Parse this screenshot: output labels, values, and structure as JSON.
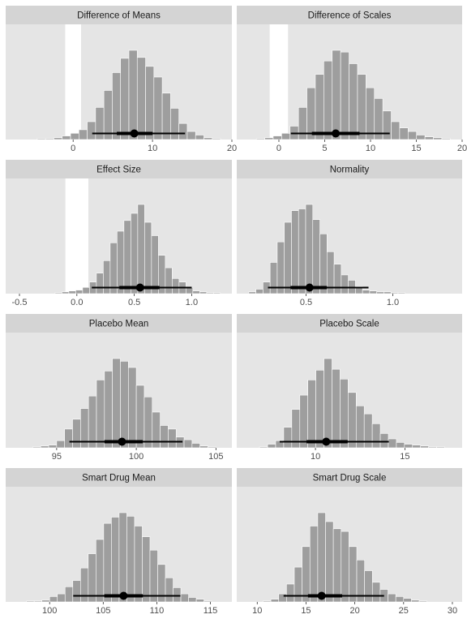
{
  "colors": {
    "panel_bg": "#e5e5e5",
    "strip_bg": "#d4d4d4",
    "bar_fill": "#9e9e9e",
    "bar_stroke": "#ffffff",
    "rope": "#ffffff",
    "interval": "#000000",
    "tick_text": "#4d4d4d",
    "strip_text": "#1a1a1a"
  },
  "chart_data": [
    {
      "type": "bar",
      "title": "Difference of Means",
      "xlim": [
        -8.5,
        20
      ],
      "ticks": [
        0,
        10,
        20
      ],
      "tick_labels": [
        "0",
        "10",
        "20"
      ],
      "rope": [
        -1,
        1
      ],
      "bin_width": 1.05,
      "bins": [
        {
          "x": -4.0,
          "count": 1
        },
        {
          "x": -2.95,
          "count": 1
        },
        {
          "x": -1.9,
          "count": 2
        },
        {
          "x": -0.85,
          "count": 4
        },
        {
          "x": 0.2,
          "count": 7
        },
        {
          "x": 1.25,
          "count": 11
        },
        {
          "x": 2.3,
          "count": 20
        },
        {
          "x": 3.35,
          "count": 36
        },
        {
          "x": 4.4,
          "count": 55
        },
        {
          "x": 5.45,
          "count": 75
        },
        {
          "x": 6.5,
          "count": 91
        },
        {
          "x": 7.55,
          "count": 100
        },
        {
          "x": 8.6,
          "count": 92
        },
        {
          "x": 9.65,
          "count": 82
        },
        {
          "x": 10.7,
          "count": 70
        },
        {
          "x": 11.75,
          "count": 52
        },
        {
          "x": 12.8,
          "count": 35
        },
        {
          "x": 13.85,
          "count": 18
        },
        {
          "x": 14.9,
          "count": 9
        },
        {
          "x": 15.95,
          "count": 5
        },
        {
          "x": 17.0,
          "count": 2
        },
        {
          "x": 18.05,
          "count": 1
        }
      ],
      "point_estimate": 7.7,
      "interval_inner": [
        5.5,
        10.0
      ],
      "interval_outer": [
        2.4,
        14.1
      ]
    },
    {
      "type": "bar",
      "title": "Difference of Scales",
      "xlim": [
        -4.6,
        20
      ],
      "ticks": [
        0,
        5,
        10,
        15,
        20
      ],
      "tick_labels": [
        "0",
        "5",
        "10",
        "15",
        "20"
      ],
      "rope": [
        -1,
        1
      ],
      "bin_width": 0.92,
      "bins": [
        {
          "x": -2.0,
          "count": 1
        },
        {
          "x": -1.08,
          "count": 2
        },
        {
          "x": -0.16,
          "count": 4
        },
        {
          "x": 0.76,
          "count": 7
        },
        {
          "x": 1.68,
          "count": 15
        },
        {
          "x": 2.6,
          "count": 36
        },
        {
          "x": 3.52,
          "count": 58
        },
        {
          "x": 4.44,
          "count": 73
        },
        {
          "x": 5.36,
          "count": 88
        },
        {
          "x": 6.28,
          "count": 100
        },
        {
          "x": 7.2,
          "count": 98
        },
        {
          "x": 8.12,
          "count": 85
        },
        {
          "x": 9.04,
          "count": 73
        },
        {
          "x": 9.96,
          "count": 58
        },
        {
          "x": 10.88,
          "count": 46
        },
        {
          "x": 11.8,
          "count": 32
        },
        {
          "x": 12.72,
          "count": 20
        },
        {
          "x": 13.64,
          "count": 13
        },
        {
          "x": 14.56,
          "count": 9
        },
        {
          "x": 15.48,
          "count": 5
        },
        {
          "x": 16.4,
          "count": 3
        },
        {
          "x": 17.32,
          "count": 2
        },
        {
          "x": 18.24,
          "count": 1
        }
      ],
      "point_estimate": 6.2,
      "interval_inner": [
        3.6,
        8.8
      ],
      "interval_outer": [
        1.3,
        12.1
      ]
    },
    {
      "type": "bar",
      "title": "Effect Size",
      "xlim": [
        -0.62,
        1.35
      ],
      "ticks": [
        -0.5,
        0,
        0.5,
        1
      ],
      "tick_labels": [
        "-0.5",
        "0.0",
        "0.5",
        "1.0"
      ],
      "rope": [
        -0.1,
        0.1
      ],
      "bin_width": 0.06,
      "bins": [
        {
          "x": -0.16,
          "count": 1
        },
        {
          "x": -0.1,
          "count": 2
        },
        {
          "x": -0.04,
          "count": 3
        },
        {
          "x": 0.02,
          "count": 4
        },
        {
          "x": 0.08,
          "count": 7
        },
        {
          "x": 0.14,
          "count": 13
        },
        {
          "x": 0.2,
          "count": 23
        },
        {
          "x": 0.26,
          "count": 37
        },
        {
          "x": 0.32,
          "count": 57
        },
        {
          "x": 0.38,
          "count": 70
        },
        {
          "x": 0.44,
          "count": 82
        },
        {
          "x": 0.5,
          "count": 90
        },
        {
          "x": 0.56,
          "count": 100
        },
        {
          "x": 0.62,
          "count": 80
        },
        {
          "x": 0.68,
          "count": 65
        },
        {
          "x": 0.74,
          "count": 43
        },
        {
          "x": 0.8,
          "count": 29
        },
        {
          "x": 0.86,
          "count": 17
        },
        {
          "x": 0.92,
          "count": 13
        },
        {
          "x": 0.98,
          "count": 7
        },
        {
          "x": 1.04,
          "count": 3
        },
        {
          "x": 1.1,
          "count": 2
        },
        {
          "x": 1.16,
          "count": 1
        },
        {
          "x": 1.22,
          "count": 1
        }
      ],
      "point_estimate": 0.55,
      "interval_inner": [
        0.37,
        0.72
      ],
      "interval_outer": [
        0.13,
        1.0
      ]
    },
    {
      "type": "bar",
      "title": "Normality",
      "xlim": [
        0.1,
        1.4
      ],
      "ticks": [
        0.5,
        1.0
      ],
      "tick_labels": [
        "0.5",
        "1.0"
      ],
      "bin_width": 0.041,
      "bins": [
        {
          "x": 0.19,
          "count": 2
        },
        {
          "x": 0.231,
          "count": 5
        },
        {
          "x": 0.272,
          "count": 13
        },
        {
          "x": 0.313,
          "count": 35
        },
        {
          "x": 0.354,
          "count": 58
        },
        {
          "x": 0.395,
          "count": 80
        },
        {
          "x": 0.436,
          "count": 93
        },
        {
          "x": 0.477,
          "count": 95
        },
        {
          "x": 0.518,
          "count": 100
        },
        {
          "x": 0.559,
          "count": 83
        },
        {
          "x": 0.6,
          "count": 67
        },
        {
          "x": 0.641,
          "count": 47
        },
        {
          "x": 0.682,
          "count": 33
        },
        {
          "x": 0.723,
          "count": 21
        },
        {
          "x": 0.764,
          "count": 15
        },
        {
          "x": 0.805,
          "count": 8
        },
        {
          "x": 0.846,
          "count": 4
        },
        {
          "x": 0.887,
          "count": 3
        },
        {
          "x": 0.928,
          "count": 2
        },
        {
          "x": 0.969,
          "count": 2
        },
        {
          "x": 1.01,
          "count": 1
        },
        {
          "x": 1.051,
          "count": 1
        }
      ],
      "point_estimate": 0.52,
      "interval_inner": [
        0.41,
        0.62
      ],
      "interval_outer": [
        0.28,
        0.86
      ]
    },
    {
      "type": "bar",
      "title": "Placebo Mean",
      "xlim": [
        91.8,
        106
      ],
      "ticks": [
        95,
        100,
        105
      ],
      "tick_labels": [
        "95",
        "100",
        "105"
      ],
      "bin_width": 0.5,
      "bins": [
        {
          "x": 93.75,
          "count": 1
        },
        {
          "x": 94.25,
          "count": 2
        },
        {
          "x": 94.75,
          "count": 3
        },
        {
          "x": 95.25,
          "count": 8
        },
        {
          "x": 95.75,
          "count": 21
        },
        {
          "x": 96.25,
          "count": 32
        },
        {
          "x": 96.75,
          "count": 44
        },
        {
          "x": 97.25,
          "count": 58
        },
        {
          "x": 97.75,
          "count": 76
        },
        {
          "x": 98.25,
          "count": 86
        },
        {
          "x": 98.75,
          "count": 100
        },
        {
          "x": 99.25,
          "count": 97
        },
        {
          "x": 99.75,
          "count": 90
        },
        {
          "x": 100.25,
          "count": 70
        },
        {
          "x": 100.75,
          "count": 57
        },
        {
          "x": 101.25,
          "count": 40
        },
        {
          "x": 101.75,
          "count": 25
        },
        {
          "x": 102.25,
          "count": 21
        },
        {
          "x": 102.75,
          "count": 12
        },
        {
          "x": 103.25,
          "count": 9
        },
        {
          "x": 103.75,
          "count": 5
        },
        {
          "x": 104.25,
          "count": 2
        },
        {
          "x": 104.75,
          "count": 1
        }
      ],
      "point_estimate": 99.1,
      "interval_inner": [
        98.0,
        100.4
      ],
      "interval_outer": [
        95.8,
        102.9
      ]
    },
    {
      "type": "bar",
      "title": "Placebo Scale",
      "xlim": [
        5.6,
        18.2
      ],
      "ticks": [
        10,
        15
      ],
      "tick_labels": [
        "10",
        "15"
      ],
      "bin_width": 0.45,
      "bins": [
        {
          "x": 7.1,
          "count": 1
        },
        {
          "x": 7.55,
          "count": 4
        },
        {
          "x": 8.0,
          "count": 8
        },
        {
          "x": 8.45,
          "count": 23
        },
        {
          "x": 8.9,
          "count": 43
        },
        {
          "x": 9.35,
          "count": 59
        },
        {
          "x": 9.8,
          "count": 76
        },
        {
          "x": 10.25,
          "count": 87
        },
        {
          "x": 10.7,
          "count": 100
        },
        {
          "x": 11.15,
          "count": 88
        },
        {
          "x": 11.6,
          "count": 77
        },
        {
          "x": 12.05,
          "count": 62
        },
        {
          "x": 12.5,
          "count": 47
        },
        {
          "x": 12.95,
          "count": 38
        },
        {
          "x": 13.4,
          "count": 27
        },
        {
          "x": 13.85,
          "count": 16
        },
        {
          "x": 14.3,
          "count": 10
        },
        {
          "x": 14.75,
          "count": 6
        },
        {
          "x": 15.2,
          "count": 4
        },
        {
          "x": 15.65,
          "count": 3
        },
        {
          "x": 16.1,
          "count": 2
        },
        {
          "x": 16.55,
          "count": 1
        },
        {
          "x": 17.0,
          "count": 1
        }
      ],
      "point_estimate": 10.6,
      "interval_inner": [
        9.5,
        11.8
      ],
      "interval_outer": [
        8.0,
        14.1
      ]
    },
    {
      "type": "bar",
      "title": "Smart Drug Mean",
      "xlim": [
        95.9,
        117
      ],
      "ticks": [
        100,
        105,
        110,
        115
      ],
      "tick_labels": [
        "100",
        "105",
        "110",
        "115"
      ],
      "bin_width": 0.72,
      "bins": [
        {
          "x": 98.2,
          "count": 1
        },
        {
          "x": 98.92,
          "count": 1
        },
        {
          "x": 99.64,
          "count": 2
        },
        {
          "x": 100.36,
          "count": 6
        },
        {
          "x": 101.08,
          "count": 9
        },
        {
          "x": 101.8,
          "count": 17
        },
        {
          "x": 102.52,
          "count": 24
        },
        {
          "x": 103.24,
          "count": 38
        },
        {
          "x": 103.96,
          "count": 54
        },
        {
          "x": 104.68,
          "count": 70
        },
        {
          "x": 105.4,
          "count": 88
        },
        {
          "x": 106.12,
          "count": 95
        },
        {
          "x": 106.84,
          "count": 100
        },
        {
          "x": 107.56,
          "count": 96
        },
        {
          "x": 108.28,
          "count": 85
        },
        {
          "x": 109.0,
          "count": 73
        },
        {
          "x": 109.72,
          "count": 58
        },
        {
          "x": 110.44,
          "count": 42
        },
        {
          "x": 111.16,
          "count": 27
        },
        {
          "x": 111.88,
          "count": 16
        },
        {
          "x": 112.6,
          "count": 9
        },
        {
          "x": 113.32,
          "count": 5
        },
        {
          "x": 114.04,
          "count": 3
        },
        {
          "x": 114.76,
          "count": 1
        }
      ],
      "point_estimate": 106.9,
      "interval_inner": [
        105.1,
        108.7
      ],
      "interval_outer": [
        102.2,
        112.2
      ]
    },
    {
      "type": "bar",
      "title": "Smart Drug Scale",
      "xlim": [
        7.9,
        31
      ],
      "ticks": [
        10,
        15,
        20,
        25,
        30
      ],
      "tick_labels": [
        "10",
        "15",
        "20",
        "25",
        "30"
      ],
      "bin_width": 0.8,
      "bins": [
        {
          "x": 11.0,
          "count": 1
        },
        {
          "x": 11.8,
          "count": 3
        },
        {
          "x": 12.6,
          "count": 9
        },
        {
          "x": 13.4,
          "count": 20
        },
        {
          "x": 14.2,
          "count": 39
        },
        {
          "x": 15.0,
          "count": 62
        },
        {
          "x": 15.8,
          "count": 85
        },
        {
          "x": 16.6,
          "count": 100
        },
        {
          "x": 17.4,
          "count": 90
        },
        {
          "x": 18.2,
          "count": 82
        },
        {
          "x": 19.0,
          "count": 79
        },
        {
          "x": 19.8,
          "count": 62
        },
        {
          "x": 20.6,
          "count": 47
        },
        {
          "x": 21.4,
          "count": 35
        },
        {
          "x": 22.2,
          "count": 22
        },
        {
          "x": 23.0,
          "count": 14
        },
        {
          "x": 23.8,
          "count": 9
        },
        {
          "x": 24.6,
          "count": 6
        },
        {
          "x": 25.4,
          "count": 4
        },
        {
          "x": 26.2,
          "count": 2
        },
        {
          "x": 27.0,
          "count": 1
        }
      ],
      "point_estimate": 16.6,
      "interval_inner": [
        15.2,
        18.7
      ],
      "interval_outer": [
        12.7,
        23.0
      ]
    }
  ]
}
